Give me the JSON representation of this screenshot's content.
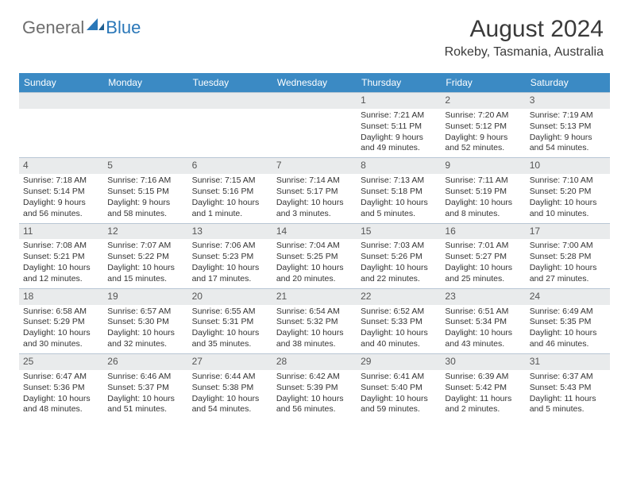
{
  "logo": {
    "general": "General",
    "blue": "Blue"
  },
  "header": {
    "month_title": "August 2024",
    "location": "Rokeby, Tasmania, Australia"
  },
  "colors": {
    "header_bar": "#3b8ac4",
    "day_band": "#e9ebec",
    "rule": "#b8c6d4",
    "text": "#333333",
    "logo_gray": "#6e6e6e",
    "logo_blue": "#2a77b8"
  },
  "weekdays": [
    "Sunday",
    "Monday",
    "Tuesday",
    "Wednesday",
    "Thursday",
    "Friday",
    "Saturday"
  ],
  "weeks": [
    [
      {
        "empty": true
      },
      {
        "empty": true
      },
      {
        "empty": true
      },
      {
        "empty": true
      },
      {
        "day": "1",
        "sunrise": "Sunrise: 7:21 AM",
        "sunset": "Sunset: 5:11 PM",
        "daylight": "Daylight: 9 hours and 49 minutes."
      },
      {
        "day": "2",
        "sunrise": "Sunrise: 7:20 AM",
        "sunset": "Sunset: 5:12 PM",
        "daylight": "Daylight: 9 hours and 52 minutes."
      },
      {
        "day": "3",
        "sunrise": "Sunrise: 7:19 AM",
        "sunset": "Sunset: 5:13 PM",
        "daylight": "Daylight: 9 hours and 54 minutes."
      }
    ],
    [
      {
        "day": "4",
        "sunrise": "Sunrise: 7:18 AM",
        "sunset": "Sunset: 5:14 PM",
        "daylight": "Daylight: 9 hours and 56 minutes."
      },
      {
        "day": "5",
        "sunrise": "Sunrise: 7:16 AM",
        "sunset": "Sunset: 5:15 PM",
        "daylight": "Daylight: 9 hours and 58 minutes."
      },
      {
        "day": "6",
        "sunrise": "Sunrise: 7:15 AM",
        "sunset": "Sunset: 5:16 PM",
        "daylight": "Daylight: 10 hours and 1 minute."
      },
      {
        "day": "7",
        "sunrise": "Sunrise: 7:14 AM",
        "sunset": "Sunset: 5:17 PM",
        "daylight": "Daylight: 10 hours and 3 minutes."
      },
      {
        "day": "8",
        "sunrise": "Sunrise: 7:13 AM",
        "sunset": "Sunset: 5:18 PM",
        "daylight": "Daylight: 10 hours and 5 minutes."
      },
      {
        "day": "9",
        "sunrise": "Sunrise: 7:11 AM",
        "sunset": "Sunset: 5:19 PM",
        "daylight": "Daylight: 10 hours and 8 minutes."
      },
      {
        "day": "10",
        "sunrise": "Sunrise: 7:10 AM",
        "sunset": "Sunset: 5:20 PM",
        "daylight": "Daylight: 10 hours and 10 minutes."
      }
    ],
    [
      {
        "day": "11",
        "sunrise": "Sunrise: 7:08 AM",
        "sunset": "Sunset: 5:21 PM",
        "daylight": "Daylight: 10 hours and 12 minutes."
      },
      {
        "day": "12",
        "sunrise": "Sunrise: 7:07 AM",
        "sunset": "Sunset: 5:22 PM",
        "daylight": "Daylight: 10 hours and 15 minutes."
      },
      {
        "day": "13",
        "sunrise": "Sunrise: 7:06 AM",
        "sunset": "Sunset: 5:23 PM",
        "daylight": "Daylight: 10 hours and 17 minutes."
      },
      {
        "day": "14",
        "sunrise": "Sunrise: 7:04 AM",
        "sunset": "Sunset: 5:25 PM",
        "daylight": "Daylight: 10 hours and 20 minutes."
      },
      {
        "day": "15",
        "sunrise": "Sunrise: 7:03 AM",
        "sunset": "Sunset: 5:26 PM",
        "daylight": "Daylight: 10 hours and 22 minutes."
      },
      {
        "day": "16",
        "sunrise": "Sunrise: 7:01 AM",
        "sunset": "Sunset: 5:27 PM",
        "daylight": "Daylight: 10 hours and 25 minutes."
      },
      {
        "day": "17",
        "sunrise": "Sunrise: 7:00 AM",
        "sunset": "Sunset: 5:28 PM",
        "daylight": "Daylight: 10 hours and 27 minutes."
      }
    ],
    [
      {
        "day": "18",
        "sunrise": "Sunrise: 6:58 AM",
        "sunset": "Sunset: 5:29 PM",
        "daylight": "Daylight: 10 hours and 30 minutes."
      },
      {
        "day": "19",
        "sunrise": "Sunrise: 6:57 AM",
        "sunset": "Sunset: 5:30 PM",
        "daylight": "Daylight: 10 hours and 32 minutes."
      },
      {
        "day": "20",
        "sunrise": "Sunrise: 6:55 AM",
        "sunset": "Sunset: 5:31 PM",
        "daylight": "Daylight: 10 hours and 35 minutes."
      },
      {
        "day": "21",
        "sunrise": "Sunrise: 6:54 AM",
        "sunset": "Sunset: 5:32 PM",
        "daylight": "Daylight: 10 hours and 38 minutes."
      },
      {
        "day": "22",
        "sunrise": "Sunrise: 6:52 AM",
        "sunset": "Sunset: 5:33 PM",
        "daylight": "Daylight: 10 hours and 40 minutes."
      },
      {
        "day": "23",
        "sunrise": "Sunrise: 6:51 AM",
        "sunset": "Sunset: 5:34 PM",
        "daylight": "Daylight: 10 hours and 43 minutes."
      },
      {
        "day": "24",
        "sunrise": "Sunrise: 6:49 AM",
        "sunset": "Sunset: 5:35 PM",
        "daylight": "Daylight: 10 hours and 46 minutes."
      }
    ],
    [
      {
        "day": "25",
        "sunrise": "Sunrise: 6:47 AM",
        "sunset": "Sunset: 5:36 PM",
        "daylight": "Daylight: 10 hours and 48 minutes."
      },
      {
        "day": "26",
        "sunrise": "Sunrise: 6:46 AM",
        "sunset": "Sunset: 5:37 PM",
        "daylight": "Daylight: 10 hours and 51 minutes."
      },
      {
        "day": "27",
        "sunrise": "Sunrise: 6:44 AM",
        "sunset": "Sunset: 5:38 PM",
        "daylight": "Daylight: 10 hours and 54 minutes."
      },
      {
        "day": "28",
        "sunrise": "Sunrise: 6:42 AM",
        "sunset": "Sunset: 5:39 PM",
        "daylight": "Daylight: 10 hours and 56 minutes."
      },
      {
        "day": "29",
        "sunrise": "Sunrise: 6:41 AM",
        "sunset": "Sunset: 5:40 PM",
        "daylight": "Daylight: 10 hours and 59 minutes."
      },
      {
        "day": "30",
        "sunrise": "Sunrise: 6:39 AM",
        "sunset": "Sunset: 5:42 PM",
        "daylight": "Daylight: 11 hours and 2 minutes."
      },
      {
        "day": "31",
        "sunrise": "Sunrise: 6:37 AM",
        "sunset": "Sunset: 5:43 PM",
        "daylight": "Daylight: 11 hours and 5 minutes."
      }
    ]
  ]
}
